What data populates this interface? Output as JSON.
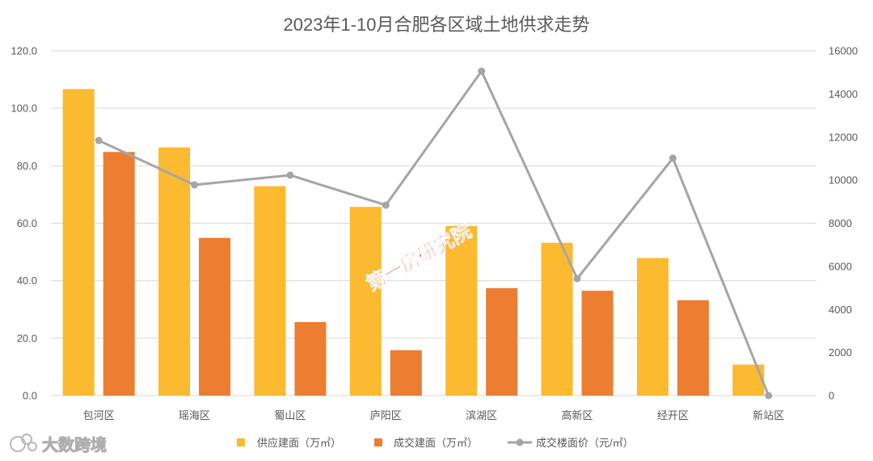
{
  "chart_data": {
    "type": "bar",
    "title": "2023年1-10月合肥各区域土地供求走势",
    "categories": [
      "包河区",
      "瑶海区",
      "蜀山区",
      "庐阳区",
      "滨湖区",
      "高新区",
      "经开区",
      "新站区"
    ],
    "series": [
      {
        "name": "供应建面（万㎡）",
        "type": "bar",
        "axis": "left",
        "color": "#FBBA30",
        "values": [
          106.7,
          86.4,
          72.9,
          65.7,
          59.0,
          53.2,
          47.9,
          10.8
        ]
      },
      {
        "name": "成交建面（万㎡）",
        "type": "bar",
        "axis": "left",
        "color": "#ED7D31",
        "values": [
          84.8,
          54.9,
          25.6,
          15.8,
          37.4,
          36.5,
          33.2,
          0
        ]
      },
      {
        "name": "成交楼面价（元/㎡）",
        "type": "line",
        "axis": "right",
        "color": "#A5A5A5",
        "values": [
          11840,
          9780,
          10230,
          8840,
          15060,
          5430,
          11020,
          0
        ]
      }
    ],
    "y_left": {
      "range": [
        0,
        120
      ],
      "ticks": [
        "0.0",
        "20.0",
        "40.0",
        "60.0",
        "80.0",
        "100.0",
        "120.0"
      ]
    },
    "y_right": {
      "range": [
        0,
        16000
      ],
      "ticks": [
        "0",
        "2000",
        "4000",
        "6000",
        "8000",
        "10000",
        "12000",
        "14000",
        "16000"
      ]
    },
    "grid": true,
    "legend_position": "bottom"
  },
  "watermarks": {
    "center": "第一房研究院",
    "corner": "大数跨境"
  }
}
